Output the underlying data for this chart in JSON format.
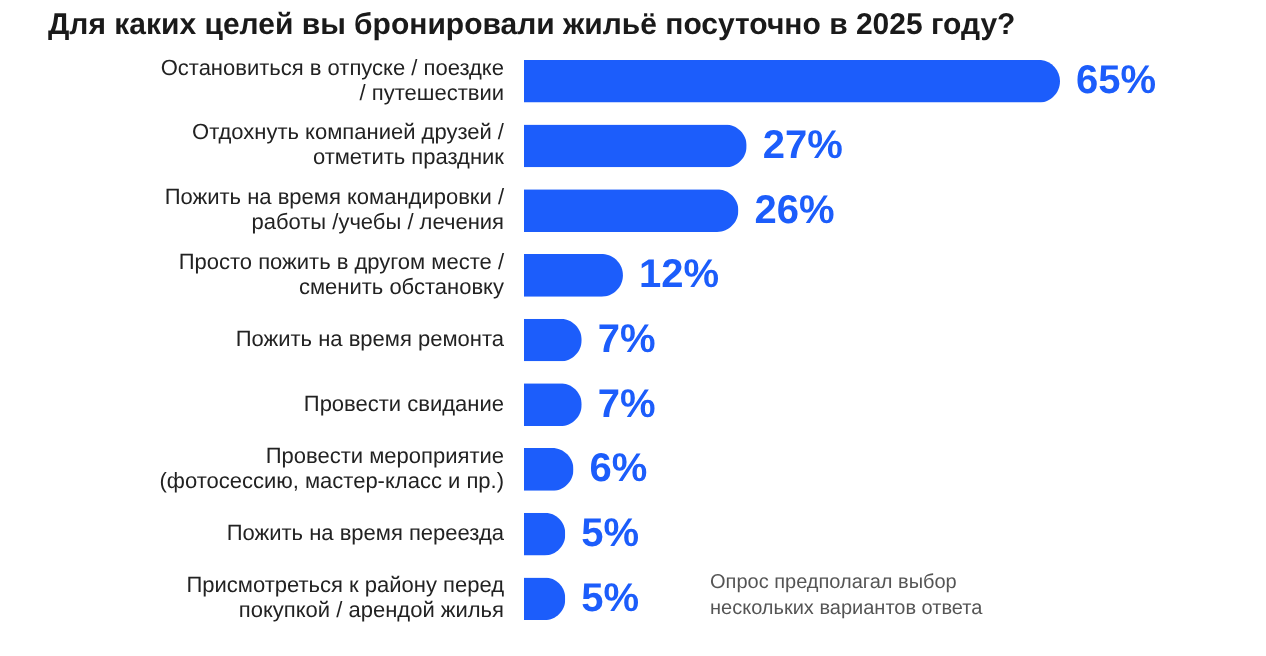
{
  "chart_data": {
    "type": "bar",
    "orientation": "horizontal",
    "title": "Для каких целей вы бронировали жильё посуточно в 2025 году?",
    "categories": [
      "Остановиться в отпуске / поездке / путешествии",
      "Отдохнуть компанией друзей / отметить праздник",
      "Пожить на время командировки / работы /учебы / лечения",
      "Просто пожить в другом месте / сменить обстановку",
      "Пожить на время ремонта",
      "Провести свидание",
      "Провести мероприятие (фотосессию, мастер-класс и пр.)",
      "Пожить на время переезда",
      "Присмотреться к району перед покупкой / арендой жилья"
    ],
    "values": [
      65,
      27,
      26,
      12,
      7,
      7,
      6,
      5,
      5
    ],
    "value_labels": [
      "65%",
      "27%",
      "26%",
      "12%",
      "7%",
      "7%",
      "6%",
      "5%",
      "5%"
    ],
    "color": "#1c5dfb",
    "annotations": [
      "Опрос предполагал выбор нескольких вариантов ответа"
    ]
  }
}
